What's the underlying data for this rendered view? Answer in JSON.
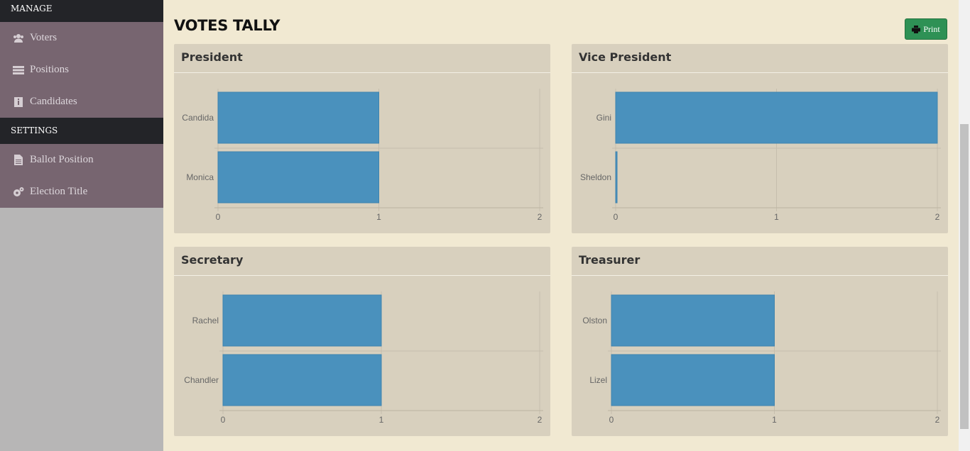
{
  "sidebar": {
    "manage_header": "MANAGE",
    "manage_items": [
      {
        "label": "Voters",
        "icon": "users-icon"
      },
      {
        "label": "Positions",
        "icon": "list-icon"
      },
      {
        "label": "Candidates",
        "icon": "candidate-icon"
      }
    ],
    "settings_header": "SETTINGS",
    "settings_items": [
      {
        "label": "Ballot Position",
        "icon": "file-icon"
      },
      {
        "label": "Election Title",
        "icon": "gears-icon"
      }
    ]
  },
  "page": {
    "title": "VOTES TALLY",
    "print_label": "Print"
  },
  "colors": {
    "bar": "#4a91bd",
    "box_bg": "#d8d0be",
    "page_bg": "#f1e9d2",
    "print_button": "#2e9155"
  },
  "chart_data": [
    {
      "type": "bar",
      "orientation": "horizontal",
      "title": "President",
      "categories": [
        "Candida",
        "Monica"
      ],
      "values": [
        1,
        1
      ],
      "xlim": [
        0,
        2
      ],
      "ticks": [
        0,
        1,
        2
      ]
    },
    {
      "type": "bar",
      "orientation": "horizontal",
      "title": "Vice President",
      "categories": [
        "Gini",
        "Sheldon"
      ],
      "values": [
        2,
        0
      ],
      "xlim": [
        0,
        2
      ],
      "ticks": [
        0,
        1,
        2
      ]
    },
    {
      "type": "bar",
      "orientation": "horizontal",
      "title": "Secretary",
      "categories": [
        "Rachel",
        "Chandler"
      ],
      "values": [
        1,
        1
      ],
      "xlim": [
        0,
        2
      ],
      "ticks": [
        0,
        1,
        2
      ]
    },
    {
      "type": "bar",
      "orientation": "horizontal",
      "title": "Treasurer",
      "categories": [
        "Olston",
        "Lizel"
      ],
      "values": [
        1,
        1
      ],
      "xlim": [
        0,
        2
      ],
      "ticks": [
        0,
        1,
        2
      ]
    }
  ]
}
